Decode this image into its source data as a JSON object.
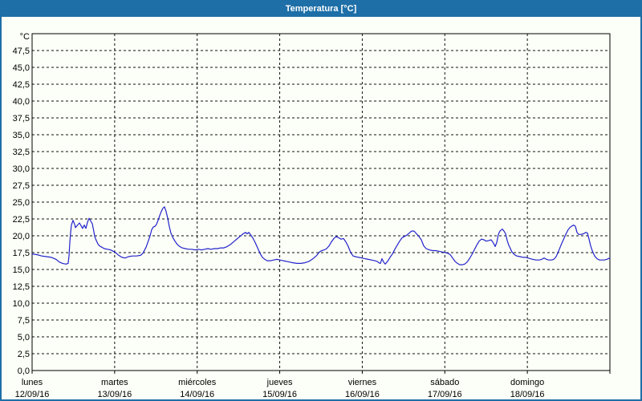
{
  "window": {
    "title": "Temperatura [°C]"
  },
  "colors": {
    "titlebar_bg": "#1e6fa8",
    "frame_border": "#1e6fa8",
    "page_bg": "#fcfff7",
    "line": "#2222cc",
    "grid": "#111111",
    "text": "#000000"
  },
  "chart_data": {
    "type": "line",
    "title": "Temperatura [°C]",
    "legend": "none",
    "grid": "dashed",
    "y_axis": {
      "unit_label": "°C",
      "min": 0,
      "max": 50,
      "tick_step": 2.5,
      "decimal_separator": ",",
      "tick_labels": [
        "0,0",
        "2,5",
        "5,0",
        "7,5",
        "10,0",
        "12,5",
        "15,0",
        "17,5",
        "20,0",
        "22,5",
        "25,0",
        "27,5",
        "30,0",
        "32,5",
        "35,0",
        "37,5",
        "40,0",
        "42,5",
        "45,0",
        "47,5"
      ]
    },
    "x_axis": {
      "span_days": 7,
      "days": [
        {
          "name": "lunes",
          "date": "12/09/16"
        },
        {
          "name": "martes",
          "date": "13/09/16"
        },
        {
          "name": "miércoles",
          "date": "14/09/16"
        },
        {
          "name": "jueves",
          "date": "15/09/16"
        },
        {
          "name": "viernes",
          "date": "16/09/16"
        },
        {
          "name": "sábado",
          "date": "17/09/16"
        },
        {
          "name": "domingo",
          "date": "18/09/16"
        }
      ]
    },
    "series": [
      {
        "name": "Temperatura",
        "color": "#2222cc",
        "x_unit": "days_since_monday_00h",
        "points": [
          [
            0.0,
            17.3
          ],
          [
            0.058,
            17.2
          ],
          [
            0.117,
            17.0
          ],
          [
            0.175,
            16.9
          ],
          [
            0.233,
            16.8
          ],
          [
            0.292,
            16.5
          ],
          [
            0.331,
            16.1
          ],
          [
            0.369,
            15.9
          ],
          [
            0.408,
            15.8
          ],
          [
            0.437,
            15.9
          ],
          [
            0.447,
            17.0
          ],
          [
            0.457,
            19.0
          ],
          [
            0.467,
            20.5
          ],
          [
            0.476,
            21.6
          ],
          [
            0.496,
            22.3
          ],
          [
            0.515,
            21.7
          ],
          [
            0.525,
            21.2
          ],
          [
            0.544,
            21.5
          ],
          [
            0.574,
            21.9
          ],
          [
            0.593,
            21.5
          ],
          [
            0.612,
            21.1
          ],
          [
            0.632,
            21.6
          ],
          [
            0.651,
            21.1
          ],
          [
            0.671,
            22.0
          ],
          [
            0.69,
            22.6
          ],
          [
            0.71,
            22.2
          ],
          [
            0.729,
            21.8
          ],
          [
            0.749,
            20.6
          ],
          [
            0.758,
            19.9
          ],
          [
            0.778,
            19.3
          ],
          [
            0.797,
            18.8
          ],
          [
            0.817,
            18.5
          ],
          [
            0.846,
            18.3
          ],
          [
            0.875,
            18.1
          ],
          [
            0.914,
            18.0
          ],
          [
            0.953,
            17.9
          ],
          [
            0.982,
            17.7
          ],
          [
            1.001,
            17.6
          ],
          [
            1.05,
            17.1
          ],
          [
            1.089,
            16.8
          ],
          [
            1.128,
            16.7
          ],
          [
            1.167,
            16.9
          ],
          [
            1.215,
            17.0
          ],
          [
            1.264,
            17.0
          ],
          [
            1.313,
            17.1
          ],
          [
            1.342,
            17.4
          ],
          [
            1.381,
            18.3
          ],
          [
            1.41,
            19.3
          ],
          [
            1.429,
            20.0
          ],
          [
            1.449,
            20.9
          ],
          [
            1.468,
            21.3
          ],
          [
            1.488,
            21.4
          ],
          [
            1.507,
            21.7
          ],
          [
            1.526,
            22.3
          ],
          [
            1.546,
            23.0
          ],
          [
            1.565,
            23.6
          ],
          [
            1.585,
            24.1
          ],
          [
            1.604,
            24.3
          ],
          [
            1.624,
            23.6
          ],
          [
            1.643,
            22.6
          ],
          [
            1.663,
            21.3
          ],
          [
            1.682,
            20.4
          ],
          [
            1.702,
            19.8
          ],
          [
            1.731,
            19.2
          ],
          [
            1.76,
            18.7
          ],
          [
            1.789,
            18.4
          ],
          [
            1.818,
            18.2
          ],
          [
            1.857,
            18.1
          ],
          [
            1.896,
            18.0
          ],
          [
            1.935,
            18.0
          ],
          [
            1.974,
            17.9
          ],
          [
            2.013,
            18.0
          ],
          [
            2.051,
            17.9
          ],
          [
            2.09,
            18.0
          ],
          [
            2.129,
            18.1
          ],
          [
            2.168,
            18.0
          ],
          [
            2.207,
            18.1
          ],
          [
            2.246,
            18.1
          ],
          [
            2.285,
            18.2
          ],
          [
            2.324,
            18.2
          ],
          [
            2.363,
            18.4
          ],
          [
            2.402,
            18.7
          ],
          [
            2.44,
            19.1
          ],
          [
            2.479,
            19.5
          ],
          [
            2.518,
            19.9
          ],
          [
            2.557,
            20.3
          ],
          [
            2.586,
            20.5
          ],
          [
            2.606,
            20.3
          ],
          [
            2.625,
            20.5
          ],
          [
            2.644,
            20.2
          ],
          [
            2.673,
            19.7
          ],
          [
            2.703,
            19.0
          ],
          [
            2.732,
            18.2
          ],
          [
            2.761,
            17.4
          ],
          [
            2.79,
            16.8
          ],
          [
            2.819,
            16.5
          ],
          [
            2.849,
            16.3
          ],
          [
            2.888,
            16.3
          ],
          [
            2.926,
            16.4
          ],
          [
            2.965,
            16.5
          ],
          [
            3.004,
            16.4
          ],
          [
            3.043,
            16.3
          ],
          [
            3.082,
            16.2
          ],
          [
            3.121,
            16.1
          ],
          [
            3.16,
            16.0
          ],
          [
            3.208,
            15.9
          ],
          [
            3.257,
            15.9
          ],
          [
            3.306,
            16.0
          ],
          [
            3.354,
            16.2
          ],
          [
            3.403,
            16.6
          ],
          [
            3.442,
            17.0
          ],
          [
            3.481,
            17.6
          ],
          [
            3.51,
            17.8
          ],
          [
            3.539,
            17.9
          ],
          [
            3.568,
            18.1
          ],
          [
            3.597,
            18.5
          ],
          [
            3.626,
            19.1
          ],
          [
            3.656,
            19.6
          ],
          [
            3.685,
            19.9
          ],
          [
            3.714,
            19.7
          ],
          [
            3.743,
            19.5
          ],
          [
            3.772,
            19.6
          ],
          [
            3.801,
            19.1
          ],
          [
            3.831,
            18.4
          ],
          [
            3.86,
            17.5
          ],
          [
            3.889,
            17.0
          ],
          [
            3.918,
            16.9
          ],
          [
            3.957,
            16.8
          ],
          [
            3.996,
            16.7
          ],
          [
            4.035,
            16.6
          ],
          [
            4.074,
            16.5
          ],
          [
            4.112,
            16.4
          ],
          [
            4.151,
            16.3
          ],
          [
            4.181,
            16.2
          ],
          [
            4.2,
            16.0
          ],
          [
            4.219,
            15.9
          ],
          [
            4.239,
            16.6
          ],
          [
            4.258,
            16.1
          ],
          [
            4.278,
            15.8
          ],
          [
            4.307,
            16.2
          ],
          [
            4.336,
            16.8
          ],
          [
            4.365,
            17.3
          ],
          [
            4.394,
            18.0
          ],
          [
            4.423,
            18.6
          ],
          [
            4.453,
            19.2
          ],
          [
            4.482,
            19.7
          ],
          [
            4.511,
            19.9
          ],
          [
            4.54,
            20.1
          ],
          [
            4.569,
            20.4
          ],
          [
            4.598,
            20.7
          ],
          [
            4.628,
            20.7
          ],
          [
            4.657,
            20.3
          ],
          [
            4.686,
            19.9
          ],
          [
            4.715,
            19.4
          ],
          [
            4.744,
            18.5
          ],
          [
            4.774,
            18.1
          ],
          [
            4.812,
            17.9
          ],
          [
            4.851,
            17.8
          ],
          [
            4.89,
            17.8
          ],
          [
            4.929,
            17.7
          ],
          [
            4.968,
            17.6
          ],
          [
            5.007,
            17.5
          ],
          [
            5.036,
            17.4
          ],
          [
            5.065,
            17.2
          ],
          [
            5.094,
            16.7
          ],
          [
            5.124,
            16.2
          ],
          [
            5.153,
            15.9
          ],
          [
            5.182,
            15.7
          ],
          [
            5.211,
            15.7
          ],
          [
            5.24,
            15.8
          ],
          [
            5.269,
            16.1
          ],
          [
            5.299,
            16.6
          ],
          [
            5.328,
            17.2
          ],
          [
            5.357,
            17.9
          ],
          [
            5.386,
            18.6
          ],
          [
            5.415,
            19.2
          ],
          [
            5.444,
            19.5
          ],
          [
            5.474,
            19.4
          ],
          [
            5.503,
            19.2
          ],
          [
            5.532,
            19.3
          ],
          [
            5.561,
            19.4
          ],
          [
            5.59,
            18.9
          ],
          [
            5.61,
            18.4
          ],
          [
            5.629,
            19.0
          ],
          [
            5.649,
            20.2
          ],
          [
            5.668,
            20.7
          ],
          [
            5.697,
            21.0
          ],
          [
            5.717,
            20.7
          ],
          [
            5.736,
            20.3
          ],
          [
            5.756,
            19.3
          ],
          [
            5.775,
            18.6
          ],
          [
            5.794,
            18.1
          ],
          [
            5.814,
            17.6
          ],
          [
            5.843,
            17.2
          ],
          [
            5.872,
            17.0
          ],
          [
            5.911,
            16.9
          ],
          [
            5.95,
            16.8
          ],
          [
            5.979,
            16.8
          ],
          [
            6.008,
            16.7
          ],
          [
            6.037,
            16.6
          ],
          [
            6.067,
            16.5
          ],
          [
            6.105,
            16.4
          ],
          [
            6.144,
            16.4
          ],
          [
            6.174,
            16.5
          ],
          [
            6.203,
            16.7
          ],
          [
            6.232,
            16.5
          ],
          [
            6.261,
            16.4
          ],
          [
            6.29,
            16.4
          ],
          [
            6.319,
            16.5
          ],
          [
            6.349,
            16.9
          ],
          [
            6.378,
            17.7
          ],
          [
            6.407,
            18.6
          ],
          [
            6.436,
            19.4
          ],
          [
            6.465,
            20.2
          ],
          [
            6.494,
            20.9
          ],
          [
            6.514,
            21.2
          ],
          [
            6.533,
            21.4
          ],
          [
            6.562,
            21.6
          ],
          [
            6.582,
            21.4
          ],
          [
            6.601,
            20.5
          ],
          [
            6.621,
            20.2
          ],
          [
            6.65,
            20.2
          ],
          [
            6.679,
            20.3
          ],
          [
            6.708,
            20.5
          ],
          [
            6.728,
            20.4
          ],
          [
            6.747,
            19.5
          ],
          [
            6.767,
            18.5
          ],
          [
            6.786,
            17.8
          ],
          [
            6.815,
            17.0
          ],
          [
            6.844,
            16.6
          ],
          [
            6.874,
            16.4
          ],
          [
            6.903,
            16.4
          ],
          [
            6.932,
            16.4
          ],
          [
            6.961,
            16.5
          ],
          [
            6.981,
            16.6
          ],
          [
            7.0,
            16.7
          ]
        ]
      }
    ]
  }
}
